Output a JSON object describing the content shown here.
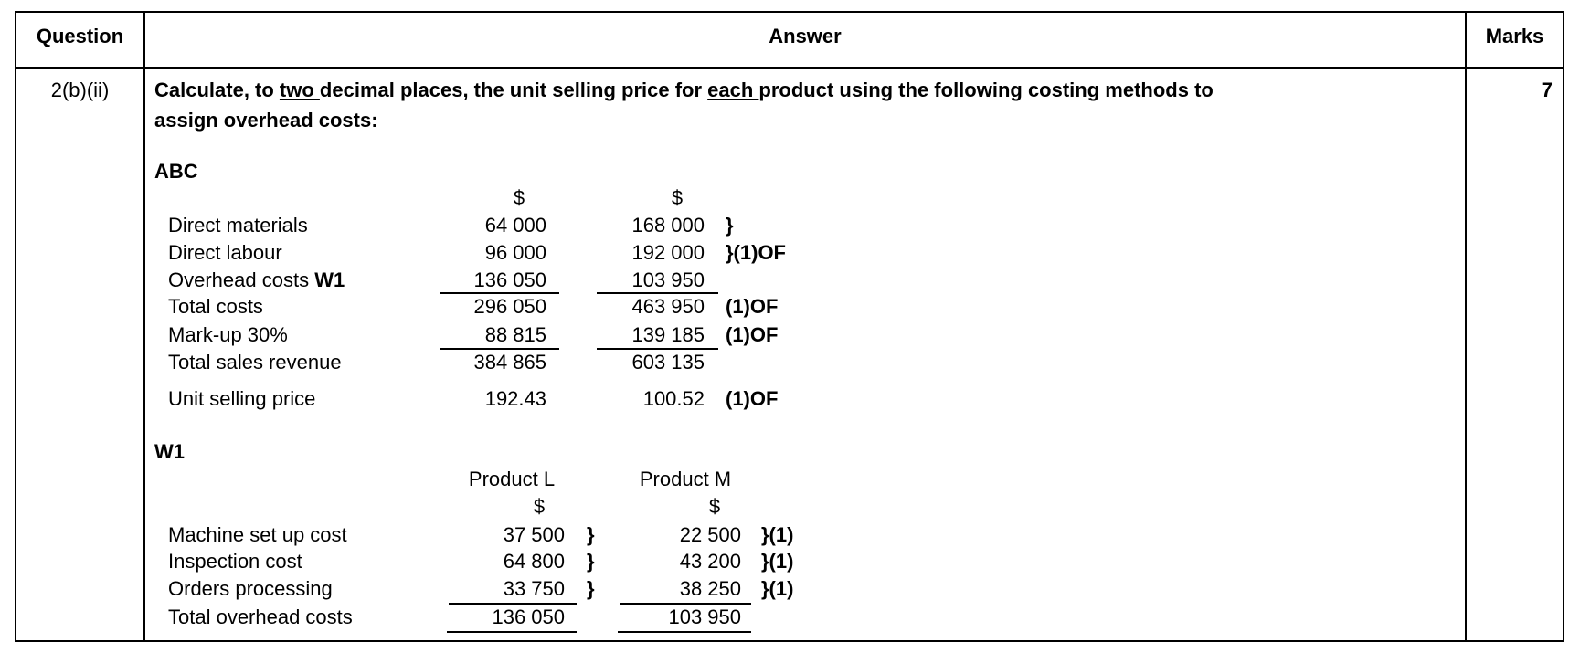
{
  "header": {
    "question": "Question",
    "answer": "Answer",
    "marks": "Marks"
  },
  "row": {
    "question_id": "2(b)(ii)",
    "marks": "7",
    "prompt": {
      "part1": "Calculate, to ",
      "underline1": "two ",
      "part2": "decimal places, the unit selling price for ",
      "underline2": "each ",
      "part3": "product using the following costing methods to",
      "line2": "assign overhead costs:"
    },
    "abc": {
      "title": "ABC",
      "currency": [
        "$",
        "$"
      ],
      "rows": [
        {
          "label": "Direct materials",
          "label_bold": "",
          "l": "64 000",
          "m": "168 000",
          "mark": "}"
        },
        {
          "label": "Direct labour",
          "label_bold": "",
          "l": "96 000",
          "m": "192 000",
          "mark": "}(1)OF"
        },
        {
          "label": "Overhead costs ",
          "label_bold": "W1",
          "l": "136 050",
          "m": "103 950",
          "mark": ""
        },
        {
          "label": "Total costs",
          "label_bold": "",
          "l": "296 050",
          "m": "463 950",
          "mark": "(1)OF"
        },
        {
          "label": "Mark-up 30%",
          "label_bold": "",
          "l": "88 815",
          "m": "139 185",
          "mark": "(1)OF"
        },
        {
          "label": "Total sales revenue",
          "label_bold": "",
          "l": "384 865",
          "m": "603 135",
          "mark": ""
        },
        {
          "label": "Unit selling price",
          "label_bold": "",
          "l": "192.43",
          "m": "100.52",
          "mark": "(1)OF"
        }
      ]
    },
    "w1": {
      "title": "W1",
      "products": [
        "Product L",
        "Product M"
      ],
      "currency": [
        "$",
        "$"
      ],
      "rows": [
        {
          "label": "Machine set up cost",
          "l": "37 500",
          "brace": "}",
          "m": "22 500",
          "mark": "}(1)"
        },
        {
          "label": "Inspection cost",
          "l": "64 800",
          "brace": "}",
          "m": "43 200",
          "mark": "}(1)"
        },
        {
          "label": "Orders processing",
          "l": "33 750",
          "brace": "}",
          "m": "38 250",
          "mark": "}(1)"
        },
        {
          "label": "Total overhead costs",
          "l": "136 050",
          "brace": "",
          "m": "103 950",
          "mark": ""
        }
      ]
    }
  }
}
